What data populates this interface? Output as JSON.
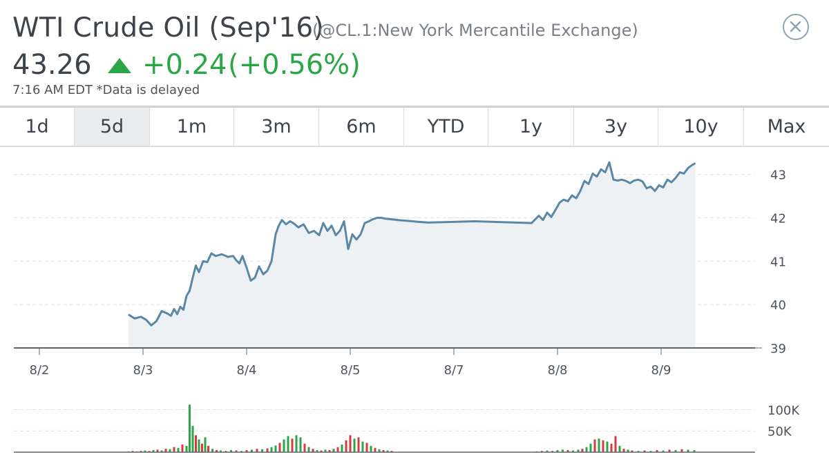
{
  "header": {
    "title": "WTI Crude Oil (Sep'16)",
    "subtitle": "(@CL.1:New York Mercantile Exchange)",
    "price": "43.26",
    "change": "+0.24",
    "change_pct": "(+0.56%)",
    "timestamp": "7:16 AM EDT *Data is delayed",
    "close_icon": "close-circle-icon",
    "up_color": "#2aa646"
  },
  "tabs": [
    {
      "label": "1d",
      "active": false
    },
    {
      "label": "5d",
      "active": true
    },
    {
      "label": "1m",
      "active": false
    },
    {
      "label": "3m",
      "active": false
    },
    {
      "label": "6m",
      "active": false
    },
    {
      "label": "YTD",
      "active": false
    },
    {
      "label": "1y",
      "active": false
    },
    {
      "label": "3y",
      "active": false
    },
    {
      "label": "10y",
      "active": false
    },
    {
      "label": "Max",
      "active": false
    }
  ],
  "chart_data": [
    {
      "type": "area",
      "title": "",
      "xlabel": "",
      "ylabel": "",
      "x_ticks": [
        "8/2",
        "8/3",
        "8/4",
        "8/5",
        "8/7",
        "8/8",
        "8/9"
      ],
      "xlim": [
        0,
        7
      ],
      "ylim": [
        39,
        43.6
      ],
      "y_ticks": [
        39,
        40,
        41,
        42,
        43
      ],
      "grid": true,
      "line_color": "#5a87a6",
      "fill_color": "#eef1f4",
      "series": [
        {
          "x": [
            0.86,
            0.92,
            0.98,
            1.03,
            1.08,
            1.13,
            1.18,
            1.23,
            1.27,
            1.3,
            1.33,
            1.36,
            1.39,
            1.42,
            1.45,
            1.48,
            1.51,
            1.54,
            1.58,
            1.62,
            1.66,
            1.7,
            1.76,
            1.82,
            1.87,
            1.9,
            1.93,
            1.96,
            2.0,
            2.04,
            2.08,
            2.12,
            2.16,
            2.2,
            2.24,
            2.28,
            2.31,
            2.34,
            2.38,
            2.42,
            2.46,
            2.5,
            2.55,
            2.6,
            2.65,
            2.7,
            2.74,
            2.78,
            2.82,
            2.86,
            2.9,
            2.94,
            2.98,
            3.02,
            3.06,
            3.1,
            3.14,
            3.18,
            3.22,
            3.26,
            3.3,
            3.34,
            3.38,
            3.42,
            3.46,
            3.5,
            3.55,
            3.6,
            3.65,
            3.7,
            3.75,
            4.2,
            4.75,
            4.82,
            4.86,
            4.9,
            4.94,
            4.98,
            5.02,
            5.06,
            5.1,
            5.14,
            5.18,
            5.22,
            5.26,
            5.3,
            5.34,
            5.38,
            5.42,
            5.46,
            5.5,
            5.54,
            5.58,
            5.62,
            5.66,
            5.7,
            5.74,
            5.78,
            5.82,
            5.86,
            5.9,
            5.94,
            5.98,
            6.02,
            6.06,
            6.1,
            6.14,
            6.18,
            6.22,
            6.26,
            6.3,
            6.33
          ],
          "values": [
            39.77,
            39.68,
            39.72,
            39.65,
            39.52,
            39.62,
            39.85,
            39.8,
            39.74,
            39.9,
            39.78,
            39.95,
            39.88,
            40.2,
            40.32,
            40.62,
            40.9,
            40.75,
            41.0,
            40.98,
            41.18,
            41.12,
            41.16,
            41.1,
            41.12,
            41.02,
            40.95,
            41.12,
            40.85,
            40.55,
            40.62,
            40.88,
            40.7,
            40.78,
            41.0,
            41.62,
            41.82,
            41.95,
            41.85,
            41.92,
            41.86,
            41.78,
            41.85,
            41.65,
            41.7,
            41.6,
            41.88,
            41.7,
            41.82,
            41.6,
            41.7,
            41.92,
            41.28,
            41.62,
            41.5,
            41.62,
            41.88,
            41.92,
            41.97,
            42.0,
            42.0,
            41.98,
            41.97,
            41.96,
            41.95,
            41.94,
            41.93,
            41.92,
            41.91,
            41.9,
            41.89,
            41.92,
            41.88,
            42.05,
            41.95,
            42.12,
            42.02,
            42.18,
            42.35,
            42.42,
            42.38,
            42.52,
            42.45,
            42.62,
            42.85,
            42.78,
            43.02,
            42.95,
            43.12,
            43.05,
            43.28,
            42.88,
            42.86,
            42.88,
            42.85,
            42.8,
            42.86,
            42.88,
            42.84,
            42.68,
            42.72,
            42.62,
            42.75,
            42.7,
            42.88,
            42.82,
            42.92,
            43.05,
            43.02,
            43.15,
            43.22,
            43.26
          ]
        }
      ]
    },
    {
      "type": "bar",
      "title": "",
      "ylim": [
        0,
        130000
      ],
      "y_ticks": [
        "100K",
        "50K"
      ],
      "y_tick_values": [
        100000,
        50000
      ],
      "grid": true,
      "up_color": "#2aa646",
      "down_color": "#d63b3b",
      "series": [
        {
          "x": [
            0.86,
            0.9,
            0.94,
            0.98,
            1.02,
            1.06,
            1.1,
            1.14,
            1.18,
            1.22,
            1.26,
            1.3,
            1.34,
            1.38,
            1.42,
            1.45,
            1.48,
            1.51,
            1.54,
            1.57,
            1.6,
            1.63,
            1.67,
            1.71,
            1.75,
            1.8,
            1.85,
            1.9,
            1.95,
            2.0,
            2.05,
            2.1,
            2.15,
            2.2,
            2.24,
            2.28,
            2.32,
            2.36,
            2.4,
            2.44,
            2.48,
            2.52,
            2.56,
            2.6,
            2.64,
            2.68,
            2.72,
            2.76,
            2.8,
            2.84,
            2.88,
            2.92,
            2.96,
            3.0,
            3.04,
            3.08,
            3.12,
            3.16,
            3.2,
            3.24,
            3.28,
            3.32,
            3.36,
            3.4,
            4.8,
            4.85,
            4.9,
            4.95,
            5.0,
            5.05,
            5.1,
            5.15,
            5.2,
            5.24,
            5.28,
            5.32,
            5.36,
            5.4,
            5.44,
            5.48,
            5.52,
            5.56,
            5.6,
            5.64,
            5.68,
            5.72,
            5.78,
            5.84,
            5.9,
            5.96,
            6.02,
            6.08,
            6.14,
            6.2,
            6.26,
            6.32
          ],
          "values": [
            2000,
            3000,
            2000,
            3000,
            4000,
            3000,
            5000,
            6000,
            4000,
            8000,
            7000,
            12000,
            10000,
            18000,
            15000,
            112000,
            62000,
            40000,
            30000,
            20000,
            35000,
            15000,
            8000,
            5000,
            4000,
            3000,
            5000,
            4000,
            3000,
            5000,
            6000,
            8000,
            7000,
            9000,
            12000,
            16000,
            22000,
            30000,
            38000,
            32000,
            40000,
            35000,
            20000,
            12000,
            8000,
            5000,
            4000,
            6000,
            5000,
            8000,
            12000,
            18000,
            28000,
            40000,
            32000,
            35000,
            25000,
            22000,
            15000,
            10000,
            7000,
            5000,
            4000,
            3000,
            2000,
            3000,
            4000,
            3000,
            5000,
            6000,
            5000,
            4000,
            6000,
            8000,
            12000,
            20000,
            30000,
            32000,
            28000,
            25000,
            20000,
            38000,
            15000,
            8000,
            6000,
            4000,
            3000,
            4000,
            3000,
            5000,
            4000,
            6000,
            5000,
            7000,
            6000,
            5000
          ],
          "direction": [
            "up",
            "down",
            "up",
            "down",
            "up",
            "down",
            "up",
            "down",
            "up",
            "down",
            "up",
            "down",
            "up",
            "down",
            "up",
            "up",
            "up",
            "down",
            "up",
            "down",
            "up",
            "down",
            "up",
            "down",
            "up",
            "down",
            "up",
            "down",
            "up",
            "down",
            "up",
            "down",
            "up",
            "down",
            "up",
            "up",
            "down",
            "up",
            "up",
            "down",
            "up",
            "up",
            "down",
            "up",
            "down",
            "up",
            "down",
            "up",
            "down",
            "up",
            "down",
            "up",
            "down",
            "down",
            "up",
            "down",
            "up",
            "down",
            "up",
            "down",
            "up",
            "down",
            "up",
            "down",
            "up",
            "down",
            "up",
            "down",
            "up",
            "up",
            "down",
            "up",
            "up",
            "down",
            "up",
            "up",
            "down",
            "up",
            "down",
            "up",
            "down",
            "down",
            "up",
            "down",
            "up",
            "down",
            "up",
            "down",
            "up",
            "down",
            "up",
            "down",
            "up",
            "down",
            "up",
            "up"
          ]
        }
      ]
    }
  ]
}
